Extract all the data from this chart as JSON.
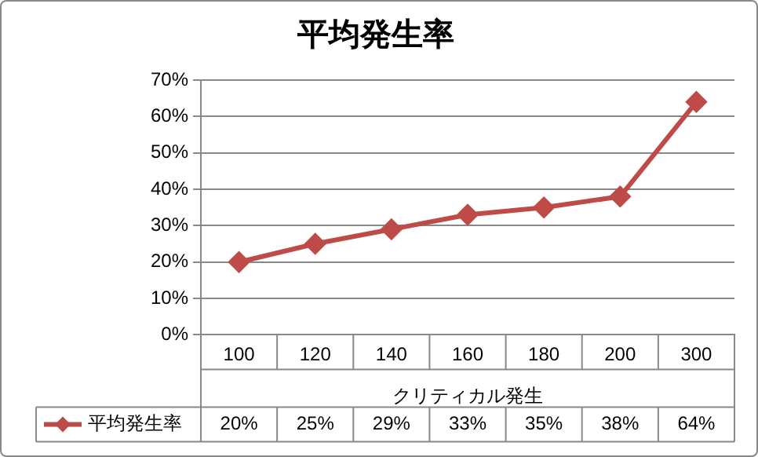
{
  "chart_data": {
    "type": "line",
    "title": "平均発生率",
    "xlabel": "クリティカル発生",
    "categories": [
      "100",
      "120",
      "140",
      "160",
      "180",
      "200",
      "300"
    ],
    "series": [
      {
        "name": "平均発生率",
        "color": "#be4b48",
        "values": [
          20,
          25,
          29,
          33,
          35,
          38,
          64
        ],
        "value_labels": [
          "20%",
          "25%",
          "29%",
          "33%",
          "35%",
          "38%",
          "64%"
        ]
      }
    ],
    "ylim": [
      0,
      70
    ],
    "yticks": [
      {
        "value": 0,
        "label": "0%"
      },
      {
        "value": 10,
        "label": "10%"
      },
      {
        "value": 20,
        "label": "20%"
      },
      {
        "value": 30,
        "label": "30%"
      },
      {
        "value": 40,
        "label": "40%"
      },
      {
        "value": 50,
        "label": "50%"
      },
      {
        "value": 60,
        "label": "60%"
      },
      {
        "value": 70,
        "label": "70%"
      }
    ],
    "grid": "y",
    "marker": "diamond",
    "line_style": "solid",
    "legend": "bottom left"
  }
}
